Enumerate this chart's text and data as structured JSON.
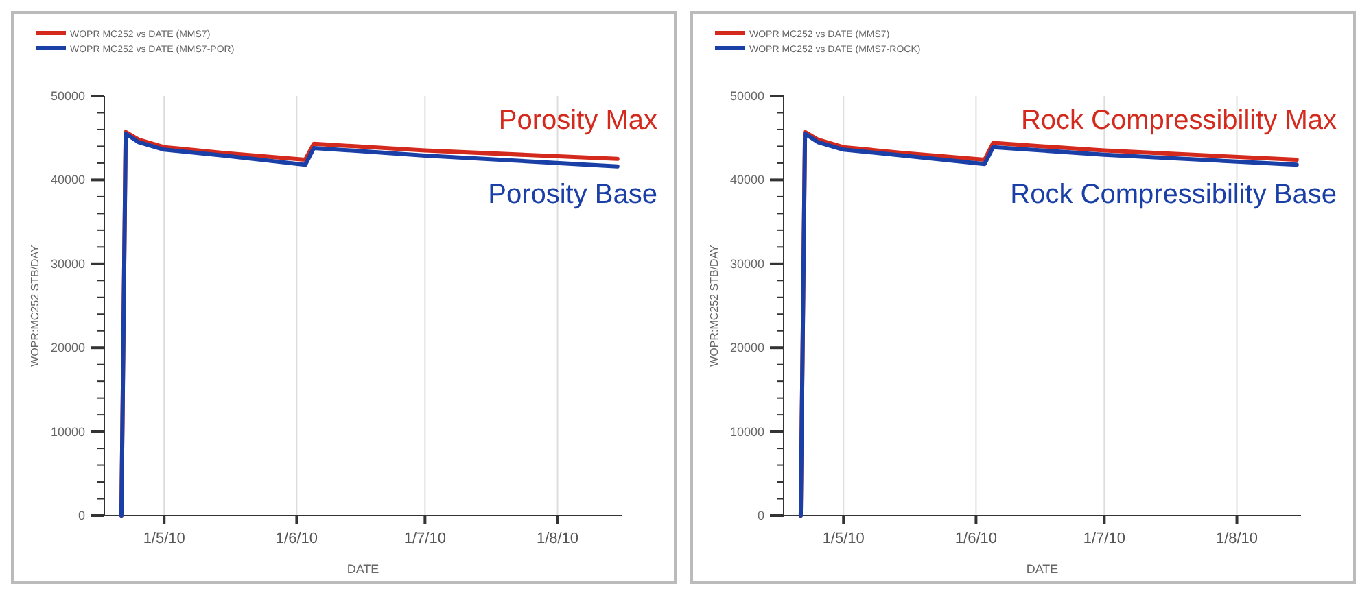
{
  "chart_data": [
    {
      "type": "line",
      "xlabel": "DATE",
      "ylabel": "WOPR:MC252  STB/DAY",
      "legend": "top left",
      "grid": "x",
      "line_style": "solid",
      "marker": "none",
      "xlim": [
        "2010-04-17",
        "2010-08-16"
      ],
      "xticks": [
        {
          "value": "2010-05-01",
          "label": "1/5/10"
        },
        {
          "value": "2010-06-01",
          "label": "1/6/10"
        },
        {
          "value": "2010-07-01",
          "label": "1/7/10"
        },
        {
          "value": "2010-08-01",
          "label": "1/8/10"
        }
      ],
      "ylim": [
        0,
        50000
      ],
      "yticks": [
        0,
        {
          "value": 2000,
          "label": null
        },
        {
          "value": 4000,
          "label": null
        },
        {
          "value": 6000,
          "label": null
        },
        {
          "value": 8000,
          "label": null
        },
        10000,
        {
          "value": 12000,
          "label": null
        },
        {
          "value": 14000,
          "label": null
        },
        {
          "value": 16000,
          "label": null
        },
        {
          "value": 18000,
          "label": null
        },
        20000,
        {
          "value": 22000,
          "label": null
        },
        {
          "value": 24000,
          "label": null
        },
        {
          "value": 26000,
          "label": null
        },
        {
          "value": 28000,
          "label": null
        },
        30000,
        {
          "value": 32000,
          "label": null
        },
        {
          "value": 34000,
          "label": null
        },
        {
          "value": 36000,
          "label": null
        },
        {
          "value": 38000,
          "label": null
        },
        40000,
        {
          "value": 42000,
          "label": null
        },
        {
          "value": 44000,
          "label": null
        },
        {
          "value": 46000,
          "label": null
        },
        {
          "value": 48000,
          "label": null
        },
        50000
      ],
      "annotations": [
        "Porosity Max",
        "Porosity Base"
      ],
      "series": [
        {
          "name": "WOPR MC252  vs  DATE (MMS7)",
          "color": "#d42a1e",
          "x": [
            "2010-04-21",
            "2010-04-22",
            "2010-04-25",
            "2010-05-01",
            "2010-05-15",
            "2010-06-03",
            "2010-06-05",
            "2010-07-01",
            "2010-08-15"
          ],
          "values": [
            0,
            45700,
            44800,
            43900,
            43200,
            42400,
            44300,
            43500,
            42500
          ]
        },
        {
          "name": "WOPR MC252  vs  DATE (MMS7-POR)",
          "color": "#1a3fa6",
          "x": [
            "2010-04-21",
            "2010-04-22",
            "2010-04-25",
            "2010-05-01",
            "2010-05-15",
            "2010-06-03",
            "2010-06-05",
            "2010-07-01",
            "2010-08-15"
          ],
          "values": [
            0,
            45500,
            44500,
            43600,
            42900,
            41800,
            43800,
            42900,
            41600
          ]
        }
      ]
    },
    {
      "type": "line",
      "xlabel": "DATE",
      "ylabel": "WOPR:MC252  STB/DAY",
      "legend": "top left",
      "grid": "x",
      "line_style": "solid",
      "marker": "none",
      "xlim": [
        "2010-04-17",
        "2010-08-16"
      ],
      "xticks": [
        {
          "value": "2010-05-01",
          "label": "1/5/10"
        },
        {
          "value": "2010-06-01",
          "label": "1/6/10"
        },
        {
          "value": "2010-07-01",
          "label": "1/7/10"
        },
        {
          "value": "2010-08-01",
          "label": "1/8/10"
        }
      ],
      "ylim": [
        0,
        50000
      ],
      "yticks": [
        0,
        {
          "value": 2000,
          "label": null
        },
        {
          "value": 4000,
          "label": null
        },
        {
          "value": 6000,
          "label": null
        },
        {
          "value": 8000,
          "label": null
        },
        10000,
        {
          "value": 12000,
          "label": null
        },
        {
          "value": 14000,
          "label": null
        },
        {
          "value": 16000,
          "label": null
        },
        {
          "value": 18000,
          "label": null
        },
        20000,
        {
          "value": 22000,
          "label": null
        },
        {
          "value": 24000,
          "label": null
        },
        {
          "value": 26000,
          "label": null
        },
        {
          "value": 28000,
          "label": null
        },
        30000,
        {
          "value": 32000,
          "label": null
        },
        {
          "value": 34000,
          "label": null
        },
        {
          "value": 36000,
          "label": null
        },
        {
          "value": 38000,
          "label": null
        },
        40000,
        {
          "value": 42000,
          "label": null
        },
        {
          "value": 44000,
          "label": null
        },
        {
          "value": 46000,
          "label": null
        },
        {
          "value": 48000,
          "label": null
        },
        50000
      ],
      "annotations": [
        "Rock Compressibility Max",
        "Rock Compressibility Base"
      ],
      "series": [
        {
          "name": "WOPR MC252  vs  DATE (MMS7)",
          "color": "#d42a1e",
          "x": [
            "2010-04-21",
            "2010-04-22",
            "2010-04-25",
            "2010-05-01",
            "2010-05-15",
            "2010-06-03",
            "2010-06-05",
            "2010-07-01",
            "2010-08-15"
          ],
          "values": [
            0,
            45700,
            44800,
            43900,
            43200,
            42400,
            44400,
            43500,
            42400
          ]
        },
        {
          "name": "WOPR MC252  vs  DATE (MMS7-ROCK)",
          "color": "#1a3fa6",
          "x": [
            "2010-04-21",
            "2010-04-22",
            "2010-04-25",
            "2010-05-01",
            "2010-05-15",
            "2010-06-03",
            "2010-06-05",
            "2010-07-01",
            "2010-08-15"
          ],
          "values": [
            0,
            45500,
            44500,
            43600,
            42900,
            41900,
            43900,
            43000,
            41800
          ]
        }
      ]
    }
  ]
}
